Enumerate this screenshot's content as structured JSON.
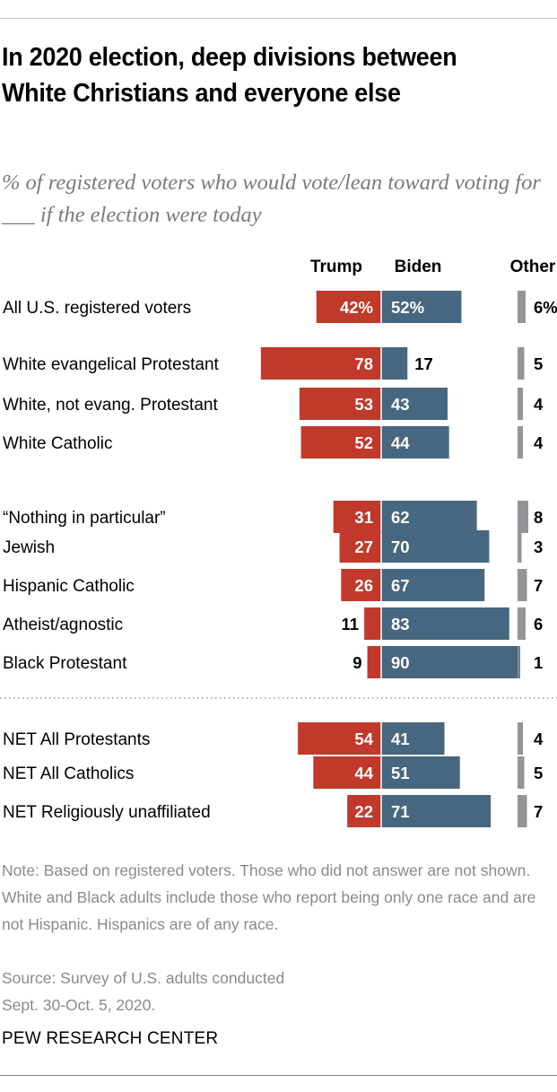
{
  "header": {
    "title": "In 2020 election, deep divisions between White Christians and everyone else",
    "subtitle": "% of registered voters who would vote/lean toward voting for ___ if the election were today"
  },
  "footer": {
    "note": "Note: Based on registered voters. Those who did not answer are not shown. White and Black adults include those who report being only one race and are not Hispanic. Hispanics are of any race.",
    "source_line1": "Source: Survey of U.S. adults conducted",
    "source_line2": "Sept. 30-Oct. 5, 2020.",
    "brand": "PEW RESEARCH CENTER"
  },
  "colors": {
    "trump": "#c0392b",
    "biden": "#46677f",
    "other": "#939598",
    "divider": "#9a9a9a"
  },
  "chart_data": {
    "type": "bar",
    "orientation": "horizontal",
    "layout": "diverging",
    "title": "In 2020 election, deep divisions between White Christians and everyone else",
    "subtitle": "% of registered voters who would vote/lean toward voting for ___ if the election were today",
    "unit": "%",
    "xlim": [
      0,
      100
    ],
    "legend": "top",
    "series": [
      {
        "name": "Trump",
        "color": "#c0392b",
        "values": [
          42,
          78,
          53,
          52,
          31,
          27,
          26,
          11,
          9,
          54,
          44,
          22
        ]
      },
      {
        "name": "Biden",
        "color": "#46677f",
        "values": [
          52,
          17,
          43,
          44,
          62,
          70,
          67,
          83,
          90,
          41,
          51,
          71
        ]
      },
      {
        "name": "Other",
        "color": "#939598",
        "values": [
          6,
          5,
          4,
          4,
          8,
          3,
          7,
          6,
          1,
          4,
          5,
          7
        ]
      }
    ],
    "categories": [
      "All U.S. registered voters",
      "White evangelical Protestant",
      "White, not evang. Protestant",
      "White Catholic",
      "“Nothing in particular”",
      "Jewish",
      "Hispanic Catholic",
      "Atheist/agnostic",
      "Black Protestant",
      "NET All Protestants",
      "NET All Catholics",
      "NET Religiously unaffiliated"
    ],
    "groups": [
      {
        "name": "total",
        "rows": [
          0
        ]
      },
      {
        "name": "white-christian",
        "rows": [
          1,
          2,
          3
        ]
      },
      {
        "name": "other-religious",
        "rows": [
          4,
          5,
          6,
          7,
          8
        ]
      },
      {
        "name": "net",
        "rows": [
          9,
          10,
          11
        ],
        "separator_before": "dotted"
      }
    ],
    "first_row_shows_percent": true
  }
}
